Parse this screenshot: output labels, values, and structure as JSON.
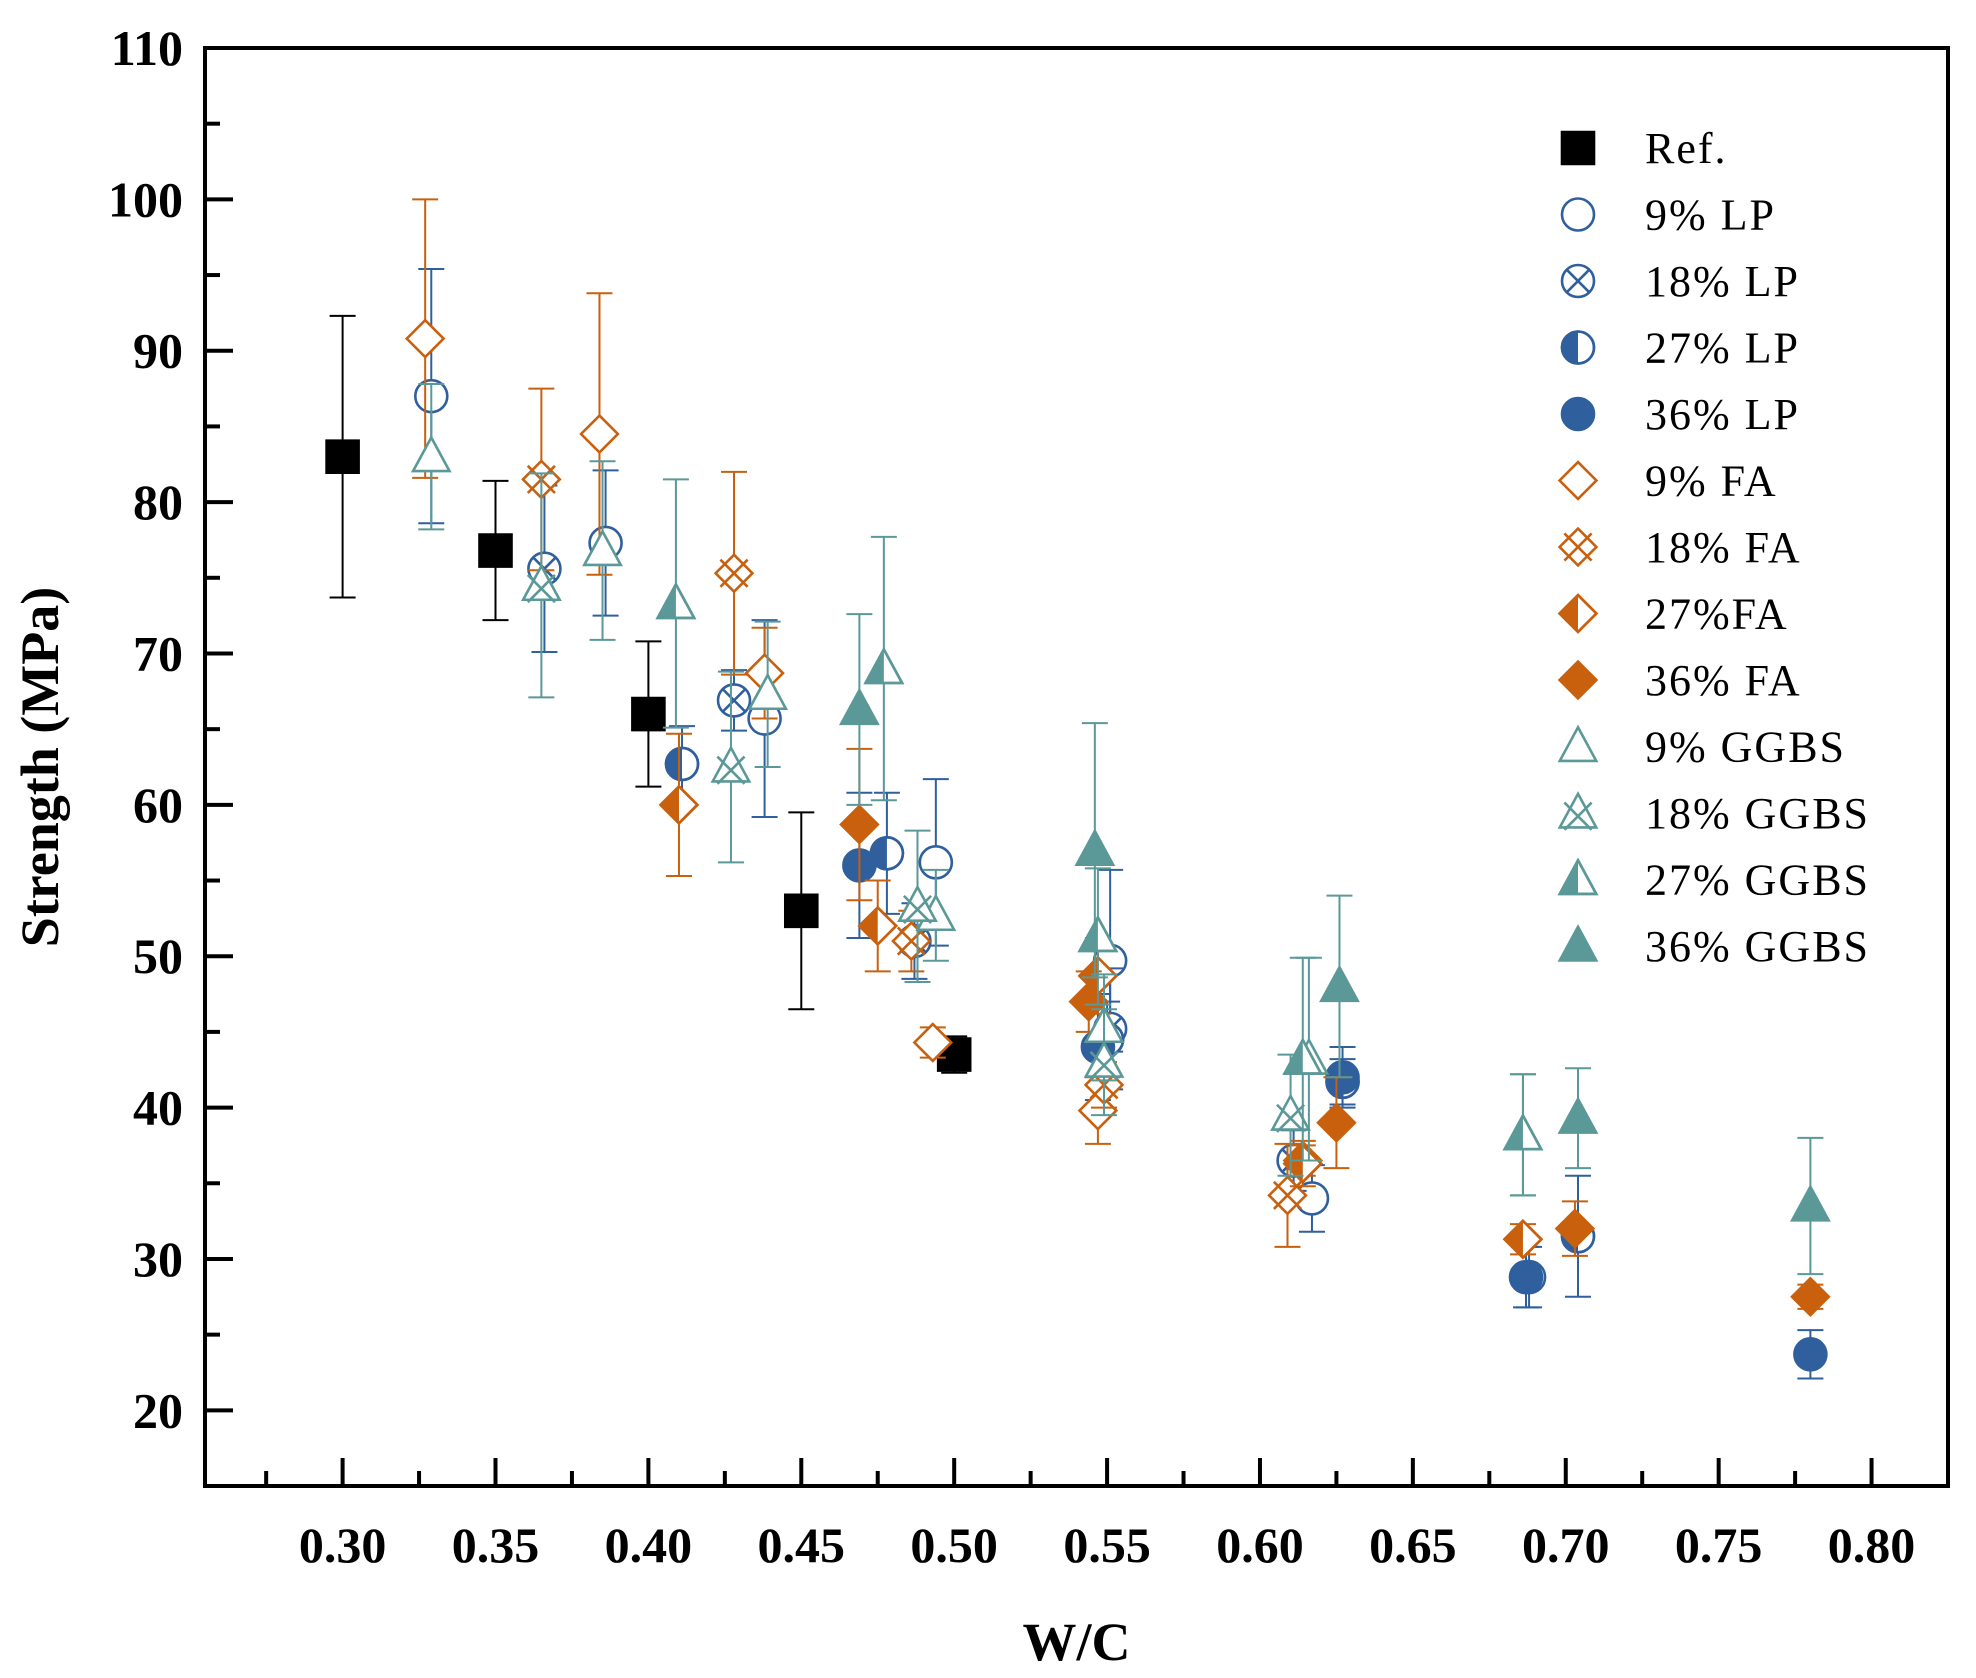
{
  "chart_data": {
    "type": "scatter",
    "title": "",
    "xlabel": "W/C",
    "ylabel": "Strength (MPa)",
    "xlim": [
      0.255,
      0.825
    ],
    "ylim": [
      15,
      110
    ],
    "x_ticks": [
      "0.30",
      "0.35",
      "0.40",
      "0.45",
      "0.50",
      "0.55",
      "0.60",
      "0.65",
      "0.70",
      "0.75",
      "0.80"
    ],
    "y_ticks": [
      "20",
      "30",
      "40",
      "50",
      "60",
      "70",
      "80",
      "90",
      "100",
      "110"
    ],
    "grid": false,
    "legend_position": "top-right",
    "colors": {
      "black": "#000000",
      "blue": "#2f5f9c",
      "orange": "#c8600e",
      "teal": "#5b9898"
    },
    "series": [
      {
        "name": "Ref.",
        "marker": "square",
        "fill": "full",
        "color": "#000000",
        "points": [
          {
            "x": 0.3,
            "y": 83.0,
            "err": 9.3
          },
          {
            "x": 0.35,
            "y": 76.8,
            "err": 4.6
          },
          {
            "x": 0.4,
            "y": 66.0,
            "err": 4.8
          },
          {
            "x": 0.45,
            "y": 53.0,
            "err": 6.5
          },
          {
            "x": 0.5,
            "y": 43.5,
            "err": 1.2
          }
        ]
      },
      {
        "name": "9% LP",
        "marker": "circle",
        "fill": "open",
        "color": "#2f5f9c",
        "points": [
          {
            "x": 0.329,
            "y": 87.0,
            "err": 8.4
          },
          {
            "x": 0.386,
            "y": 77.3,
            "err": 4.8
          },
          {
            "x": 0.438,
            "y": 65.7,
            "err": 6.5
          },
          {
            "x": 0.494,
            "y": 56.2,
            "err": 5.5
          },
          {
            "x": 0.551,
            "y": 49.7,
            "err": 6.0
          },
          {
            "x": 0.617,
            "y": 34.0,
            "err": 2.2
          },
          {
            "x": 0.688,
            "y": 28.8,
            "err": 2.0
          }
        ]
      },
      {
        "name": "18% LP",
        "marker": "circle-x",
        "fill": "open",
        "color": "#2f5f9c",
        "points": [
          {
            "x": 0.366,
            "y": 75.6,
            "err": 5.5
          },
          {
            "x": 0.428,
            "y": 66.9,
            "err": 2.0
          },
          {
            "x": 0.487,
            "y": 51.0,
            "err": 2.5
          },
          {
            "x": 0.551,
            "y": 45.2,
            "err": 4.0
          },
          {
            "x": 0.611,
            "y": 36.5,
            "err": 2.0
          }
        ]
      },
      {
        "name": "27% LP",
        "marker": "circle-half",
        "fill": "half",
        "color": "#2f5f9c",
        "points": [
          {
            "x": 0.411,
            "y": 62.7,
            "err": 2.5
          },
          {
            "x": 0.478,
            "y": 56.8,
            "err": 4.0
          },
          {
            "x": 0.55,
            "y": 44.5,
            "err": 2.5
          },
          {
            "x": 0.627,
            "y": 41.7,
            "err": 1.5
          },
          {
            "x": 0.704,
            "y": 31.5,
            "err": 4.0
          }
        ]
      },
      {
        "name": "36% LP",
        "marker": "circle",
        "fill": "full",
        "color": "#2f5f9c",
        "points": [
          {
            "x": 0.469,
            "y": 56.0,
            "err": 4.8
          },
          {
            "x": 0.547,
            "y": 44.0,
            "err": 3.5
          },
          {
            "x": 0.627,
            "y": 42.0,
            "err": 2.0
          },
          {
            "x": 0.687,
            "y": 28.8,
            "err": 2.0
          },
          {
            "x": 0.78,
            "y": 23.7,
            "err": 1.6
          }
        ]
      },
      {
        "name": "9% FA",
        "marker": "diamond",
        "fill": "open",
        "color": "#c8600e",
        "points": [
          {
            "x": 0.327,
            "y": 90.8,
            "err": 9.2
          },
          {
            "x": 0.384,
            "y": 84.5,
            "err": 9.3
          },
          {
            "x": 0.438,
            "y": 68.7,
            "err": 3.0
          },
          {
            "x": 0.493,
            "y": 44.3,
            "err": 1.0
          },
          {
            "x": 0.547,
            "y": 39.8,
            "err": 2.2
          },
          {
            "x": 0.614,
            "y": 36.5,
            "err": 1.0
          }
        ]
      },
      {
        "name": "18% FA",
        "marker": "diamond-x",
        "fill": "open",
        "color": "#c8600e",
        "points": [
          {
            "x": 0.365,
            "y": 81.5,
            "err": 6.0
          },
          {
            "x": 0.428,
            "y": 75.3,
            "err": 6.7
          },
          {
            "x": 0.486,
            "y": 51.0,
            "err": 2.0
          },
          {
            "x": 0.549,
            "y": 41.5,
            "err": 1.5
          },
          {
            "x": 0.609,
            "y": 34.2,
            "err": 3.4
          }
        ]
      },
      {
        "name": "27%FA",
        "marker": "diamond-half",
        "fill": "half",
        "color": "#c8600e",
        "points": [
          {
            "x": 0.41,
            "y": 60.0,
            "err": 4.7
          },
          {
            "x": 0.475,
            "y": 52.0,
            "err": 3.0
          },
          {
            "x": 0.547,
            "y": 48.7,
            "err": 2.5
          },
          {
            "x": 0.614,
            "y": 36.3,
            "err": 1.5
          },
          {
            "x": 0.686,
            "y": 31.3,
            "err": 1.0
          }
        ]
      },
      {
        "name": "36% FA",
        "marker": "diamond",
        "fill": "full",
        "color": "#c8600e",
        "points": [
          {
            "x": 0.469,
            "y": 58.7,
            "err": 5.0
          },
          {
            "x": 0.544,
            "y": 47.0,
            "err": 2.0
          },
          {
            "x": 0.625,
            "y": 39.0,
            "err": 3.0
          },
          {
            "x": 0.703,
            "y": 32.0,
            "err": 1.8
          },
          {
            "x": 0.78,
            "y": 27.5,
            "err": 0.8
          }
        ]
      },
      {
        "name": "9% GGBS",
        "marker": "triangle",
        "fill": "open",
        "color": "#5b9898",
        "points": [
          {
            "x": 0.329,
            "y": 83.0,
            "err": 4.8
          },
          {
            "x": 0.385,
            "y": 76.8,
            "err": 5.9
          },
          {
            "x": 0.439,
            "y": 67.3,
            "err": 4.8
          },
          {
            "x": 0.494,
            "y": 52.7,
            "err": 3.0
          },
          {
            "x": 0.549,
            "y": 45.3,
            "err": 3.5
          },
          {
            "x": 0.616,
            "y": 43.2,
            "err": 6.7
          },
          {
            "x": 0.686,
            "y": 38.2,
            "err": 4.0
          }
        ]
      },
      {
        "name": "18% GGBS",
        "marker": "triangle-x",
        "fill": "open",
        "color": "#5b9898",
        "points": [
          {
            "x": 0.365,
            "y": 74.5,
            "err": 7.4
          },
          {
            "x": 0.427,
            "y": 62.5,
            "err": 6.3
          },
          {
            "x": 0.488,
            "y": 53.3,
            "err": 5.0
          },
          {
            "x": 0.549,
            "y": 43.0,
            "err": 3.5
          },
          {
            "x": 0.61,
            "y": 39.5,
            "err": 4.0
          }
        ]
      },
      {
        "name": "27% GGBS",
        "marker": "triangle-half",
        "fill": "half",
        "color": "#5b9898",
        "points": [
          {
            "x": 0.409,
            "y": 73.3,
            "err": 8.2
          },
          {
            "x": 0.477,
            "y": 69.0,
            "err": 8.7
          },
          {
            "x": 0.547,
            "y": 51.3,
            "err": 4.5
          },
          {
            "x": 0.614,
            "y": 43.2,
            "err": 6.7
          },
          {
            "x": 0.686,
            "y": 38.2,
            "err": 4.0
          }
        ]
      },
      {
        "name": "36% GGBS",
        "marker": "triangle",
        "fill": "full",
        "color": "#5b9898",
        "points": [
          {
            "x": 0.469,
            "y": 66.3,
            "err": 6.3
          },
          {
            "x": 0.546,
            "y": 57.0,
            "err": 8.4
          },
          {
            "x": 0.626,
            "y": 48.0,
            "err": 6.0
          },
          {
            "x": 0.704,
            "y": 39.3,
            "err": 3.3
          },
          {
            "x": 0.78,
            "y": 33.5,
            "err": 4.5
          }
        ]
      }
    ]
  }
}
